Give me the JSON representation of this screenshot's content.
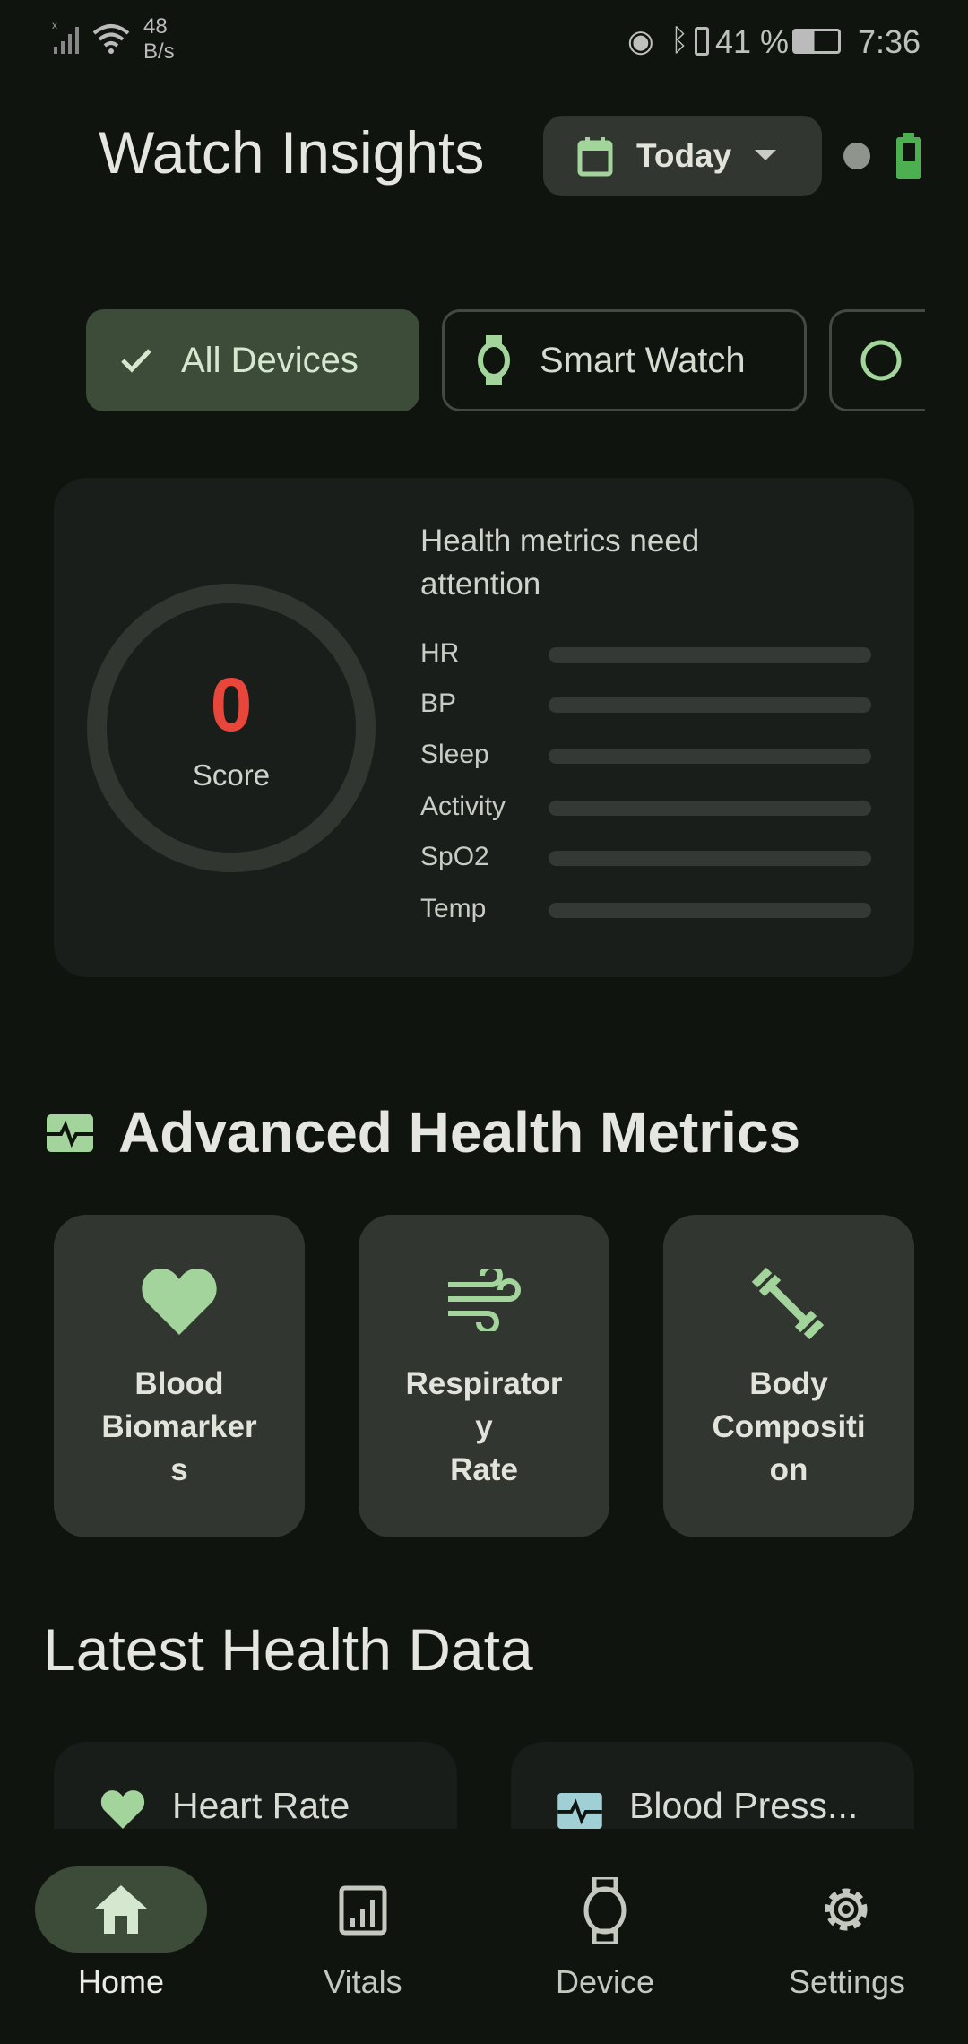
{
  "status_bar": {
    "net_speed_value": "48",
    "net_speed_unit": "B/s",
    "battery_percent": "41 %",
    "time": "7:36"
  },
  "header": {
    "title": "Watch Insights",
    "date_filter": "Today"
  },
  "filters": {
    "chips": [
      {
        "label": "All Devices",
        "selected": true
      },
      {
        "label": "Smart Watch",
        "selected": false
      },
      {
        "label": "",
        "selected": false
      }
    ]
  },
  "score_card": {
    "score": "0",
    "score_label": "Score",
    "message": "Health metrics need attention",
    "score_color": "#e8463a",
    "metrics": [
      {
        "label": "HR",
        "value": 0
      },
      {
        "label": "BP",
        "value": 0
      },
      {
        "label": "Sleep",
        "value": 0
      },
      {
        "label": "Activity",
        "value": 0
      },
      {
        "label": "SpO2",
        "value": 0
      },
      {
        "label": "Temp",
        "value": 0
      }
    ]
  },
  "advanced": {
    "title": "Advanced Health Metrics",
    "tiles": [
      {
        "label": "Blood\nBiomarker\ns",
        "icon": "heart-icon"
      },
      {
        "label": "Respirator\ny\nRate",
        "icon": "wind-icon"
      },
      {
        "label": "Body\nCompositi\non",
        "icon": "dumbbell-icon"
      }
    ]
  },
  "latest": {
    "title": "Latest Health Data",
    "cards": [
      {
        "label": "Heart Rate",
        "icon": "heart-icon"
      },
      {
        "label": "Blood Press...",
        "icon": "monitor-heart-icon"
      }
    ]
  },
  "nav": {
    "items": [
      {
        "label": "Home",
        "active": true
      },
      {
        "label": "Vitals"
      },
      {
        "label": "Device"
      },
      {
        "label": "Settings"
      }
    ]
  },
  "colors": {
    "accent": "#a3d49b",
    "background": "#0f140f",
    "surface": "#323631",
    "battery": "#4caf50"
  }
}
